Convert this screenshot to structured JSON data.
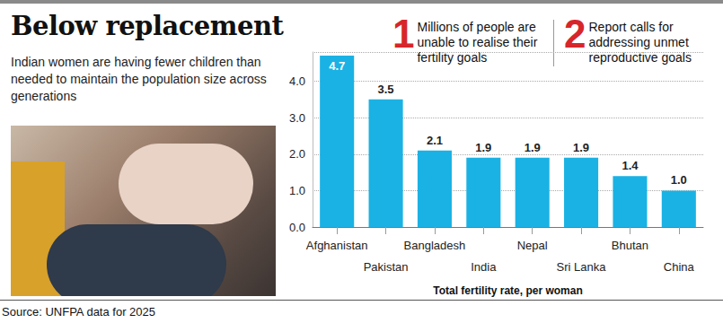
{
  "header": {
    "title": "Below replacement",
    "subtitle": "Indian women are having fewer children than needed to maintain the population size across generations"
  },
  "annotations": [
    {
      "number": "1",
      "text": "Millions of people are unable to realise their fertility goals"
    },
    {
      "number": "2",
      "text": "Report calls for addressing unmet reproductive goals"
    }
  ],
  "source": "Source: UNFPA data for 2025",
  "chart_data": {
    "type": "bar",
    "x_label": "Total fertility rate, per woman",
    "categories": [
      "Afghanistan",
      "Pakistan",
      "Bangladesh",
      "India",
      "Nepal",
      "Sri Lanka",
      "Bhutan",
      "China"
    ],
    "values": [
      4.7,
      3.5,
      2.1,
      1.9,
      1.9,
      1.9,
      1.4,
      1.0
    ],
    "value_labels": [
      "4.7",
      "3.5",
      "2.1",
      "1.9",
      "1.9",
      "1.9",
      "1.4",
      "1.0"
    ],
    "color": "#1ab2e4",
    "ylim": [
      0,
      4.8
    ],
    "yticks": [
      {
        "value": 0,
        "label": "0.0"
      },
      {
        "value": 1,
        "label": "1.0"
      },
      {
        "value": 2,
        "label": "2.0"
      },
      {
        "value": 3,
        "label": "3.0"
      },
      {
        "value": 4,
        "label": "4.0"
      }
    ],
    "grid": true,
    "data_labels": true
  }
}
